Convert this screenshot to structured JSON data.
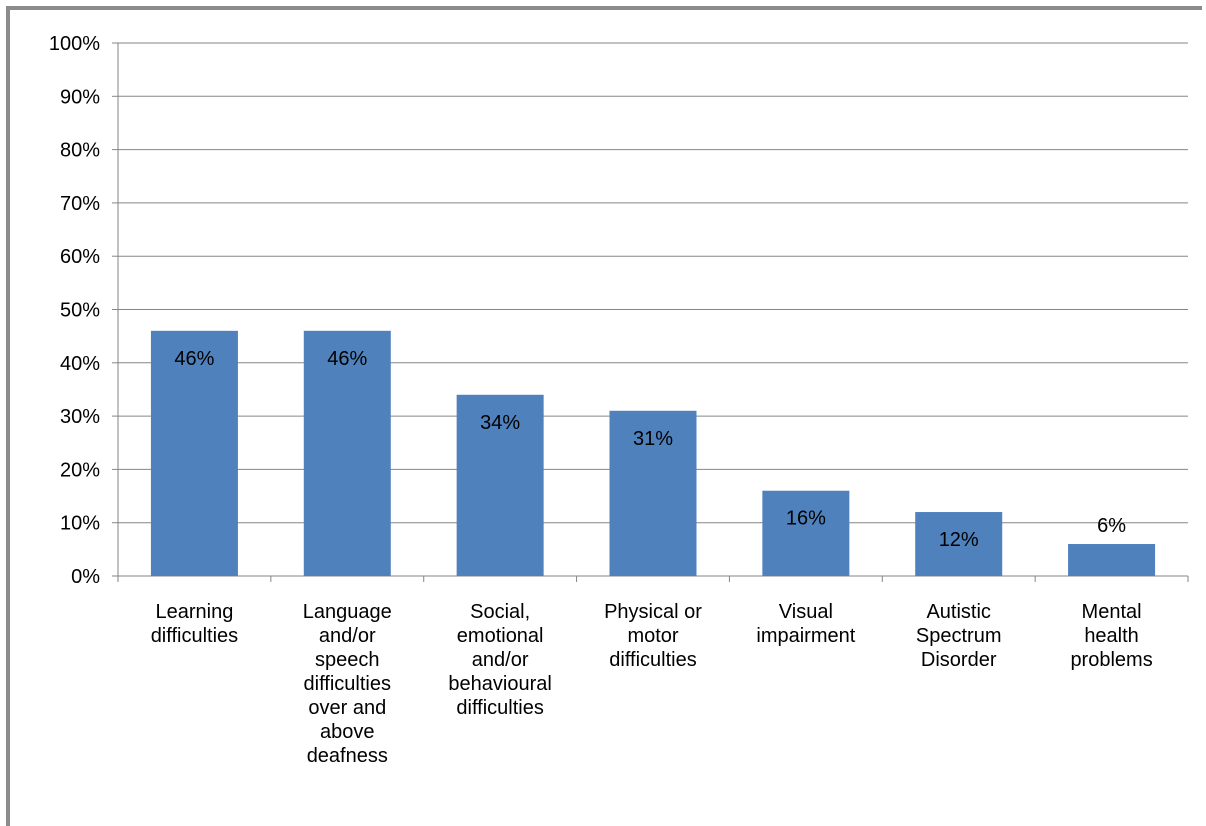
{
  "chart_data": {
    "type": "bar",
    "categories": [
      [
        "Learning",
        "difficulties"
      ],
      [
        "Language",
        "and/or",
        "speech",
        "difficulties",
        "over and",
        "above",
        "deafness"
      ],
      [
        "Social,",
        "emotional",
        "and/or",
        "behavioural",
        "difficulties"
      ],
      [
        "Physical or",
        "motor",
        "difficulties"
      ],
      [
        "Visual",
        "impairment"
      ],
      [
        "Autistic",
        "Spectrum",
        "Disorder"
      ],
      [
        "Mental",
        "health",
        "problems"
      ]
    ],
    "values": [
      46,
      46,
      34,
      31,
      16,
      12,
      6
    ],
    "data_labels": [
      "46%",
      "46%",
      "34%",
      "31%",
      "16%",
      "12%",
      "6%"
    ],
    "yticks": [
      "0%",
      "10%",
      "20%",
      "30%",
      "40%",
      "50%",
      "60%",
      "70%",
      "80%",
      "90%",
      "100%"
    ],
    "ylim": [
      0,
      100
    ],
    "title": "",
    "xlabel": "",
    "ylabel": "",
    "grid": true,
    "legend": "none",
    "bar_color": "#4f81bd",
    "grid_color": "#868686"
  }
}
